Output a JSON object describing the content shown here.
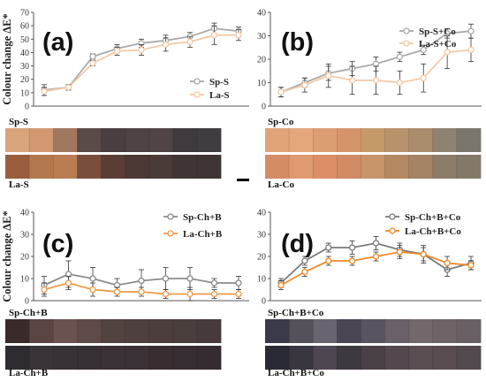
{
  "y_axis_label": "Colour change ΔE*",
  "chart_data": [
    {
      "panel": "(a)",
      "type": "line",
      "ylim": [
        0,
        70
      ],
      "yticks": [
        0,
        10,
        20,
        30,
        40,
        50,
        60,
        70
      ],
      "legend_position": "right",
      "series": [
        {
          "name": "Sp-S",
          "color": "#aaaaaa",
          "values": [
            12,
            14,
            37,
            43,
            47,
            49,
            52,
            58,
            56
          ],
          "errors": [
            4,
            2,
            2,
            3,
            3,
            4,
            3,
            4,
            3
          ]
        },
        {
          "name": "La-S",
          "color": "#f4caa6",
          "values": [
            11,
            14,
            32,
            41,
            42,
            46,
            48,
            53,
            53
          ],
          "errors": [
            3,
            2,
            2,
            3,
            4,
            5,
            4,
            7,
            4
          ]
        }
      ]
    },
    {
      "panel": "(b)",
      "type": "line",
      "ylim": [
        0,
        40
      ],
      "yticks": [
        0,
        10,
        20,
        30,
        40
      ],
      "legend_position": "top-right",
      "series": [
        {
          "name": "Sp-S+Co",
          "color": "#aaaaaa",
          "values": [
            6,
            10,
            14,
            16,
            18,
            21,
            24,
            31,
            32
          ],
          "errors": [
            2,
            2,
            3,
            3,
            3,
            2,
            2,
            2,
            3
          ]
        },
        {
          "name": "La-S+Co",
          "color": "#f4caa6",
          "values": [
            6,
            9,
            13,
            11,
            11,
            10,
            12,
            23,
            24
          ],
          "errors": [
            2,
            3,
            5,
            6,
            6,
            5,
            6,
            7,
            5
          ]
        }
      ]
    },
    {
      "panel": "(c)",
      "type": "line",
      "ylim": [
        0,
        40
      ],
      "yticks": [
        0,
        10,
        20,
        30,
        40
      ],
      "legend_position": "top-right",
      "series": [
        {
          "name": "Sp-Ch+B",
          "color": "#8c8c8c",
          "values": [
            7,
            12,
            10,
            7,
            9,
            10,
            10,
            8,
            8
          ],
          "errors": [
            4,
            6,
            5,
            3,
            5,
            5,
            5,
            2,
            3
          ]
        },
        {
          "name": "La-Ch+B",
          "color": "#ef9a4a",
          "values": [
            5,
            8,
            5,
            4,
            4,
            3,
            3,
            3,
            3
          ],
          "errors": [
            3,
            3,
            3,
            2,
            2,
            2,
            3,
            2,
            2
          ]
        }
      ]
    },
    {
      "panel": "(d)",
      "type": "line",
      "ylim": [
        0,
        40
      ],
      "yticks": [
        0,
        10,
        20,
        30,
        40
      ],
      "legend_position": "top-right",
      "series": [
        {
          "name": "Sp-Ch+B+Co",
          "color": "#7a7a7a",
          "values": [
            8,
            18,
            24,
            24,
            26,
            23,
            21,
            14,
            17
          ],
          "errors": [
            2,
            2,
            2,
            3,
            3,
            3,
            4,
            3,
            3
          ]
        },
        {
          "name": "La-Ch+B+Co",
          "color": "#ef8a2a",
          "values": [
            7,
            13,
            18,
            18,
            20,
            22,
            21,
            17,
            16
          ],
          "errors": [
            2,
            2,
            2,
            2,
            2,
            3,
            3,
            3,
            2
          ]
        }
      ]
    }
  ],
  "strips": [
    {
      "label": "Sp-S",
      "colors": [
        "#d8a47c",
        "#d39871",
        "#a07860",
        "#5a4a48",
        "#4a3e40",
        "#4d4244",
        "#4f4446",
        "#3e3a3e",
        "#403c40"
      ]
    },
    {
      "label": "La-S",
      "colors": [
        "#9a5e3e",
        "#b4784e",
        "#ba7c52",
        "#7a4e3c",
        "#5a3e36",
        "#4c3834",
        "#4a3a38",
        "#403434",
        "#3e3434"
      ]
    },
    {
      "label": "Sp-Co",
      "colors": [
        "#e0a478",
        "#e4a67c",
        "#dc9c74",
        "#d6946c",
        "#c49a6a",
        "#b8926a",
        "#a88c6e",
        "#8e8270",
        "#7a766e"
      ]
    },
    {
      "label": "La-Co",
      "colors": [
        "#d48c66",
        "#e09a72",
        "#dc8e66",
        "#d08a64",
        "#c8946a",
        "#b48860",
        "#a48464",
        "#8c7c6a",
        "#847868"
      ]
    },
    {
      "label": "Sp-Ch+B",
      "colors": [
        "#3a2a2a",
        "#5a4444",
        "#6a5250",
        "#5e4a48",
        "#524240",
        "#4e403e",
        "#4c3e3c",
        "#4a3e3c",
        "#463a3a"
      ]
    },
    {
      "label": "La-Ch+B",
      "colors": [
        "#2e2c30",
        "#3a3438",
        "#383236",
        "#363034",
        "#3a3236",
        "#3a3236",
        "#382e32",
        "#362e32",
        "#342c30"
      ]
    },
    {
      "label": "Sp-Ch+B+Co",
      "colors": [
        "#3a3a4a",
        "#55505a",
        "#6a6470",
        "#4a4654",
        "#5a5460",
        "#6a6068",
        "#72686c",
        "#6e6468",
        "#686064"
      ]
    },
    {
      "label": "La-Ch+B+Co",
      "colors": [
        "#2a2a34",
        "#3a3640",
        "#4e4650",
        "#3e3840",
        "#4a4048",
        "#52484e",
        "#5a4e52",
        "#584c50",
        "#524a4e"
      ]
    }
  ]
}
